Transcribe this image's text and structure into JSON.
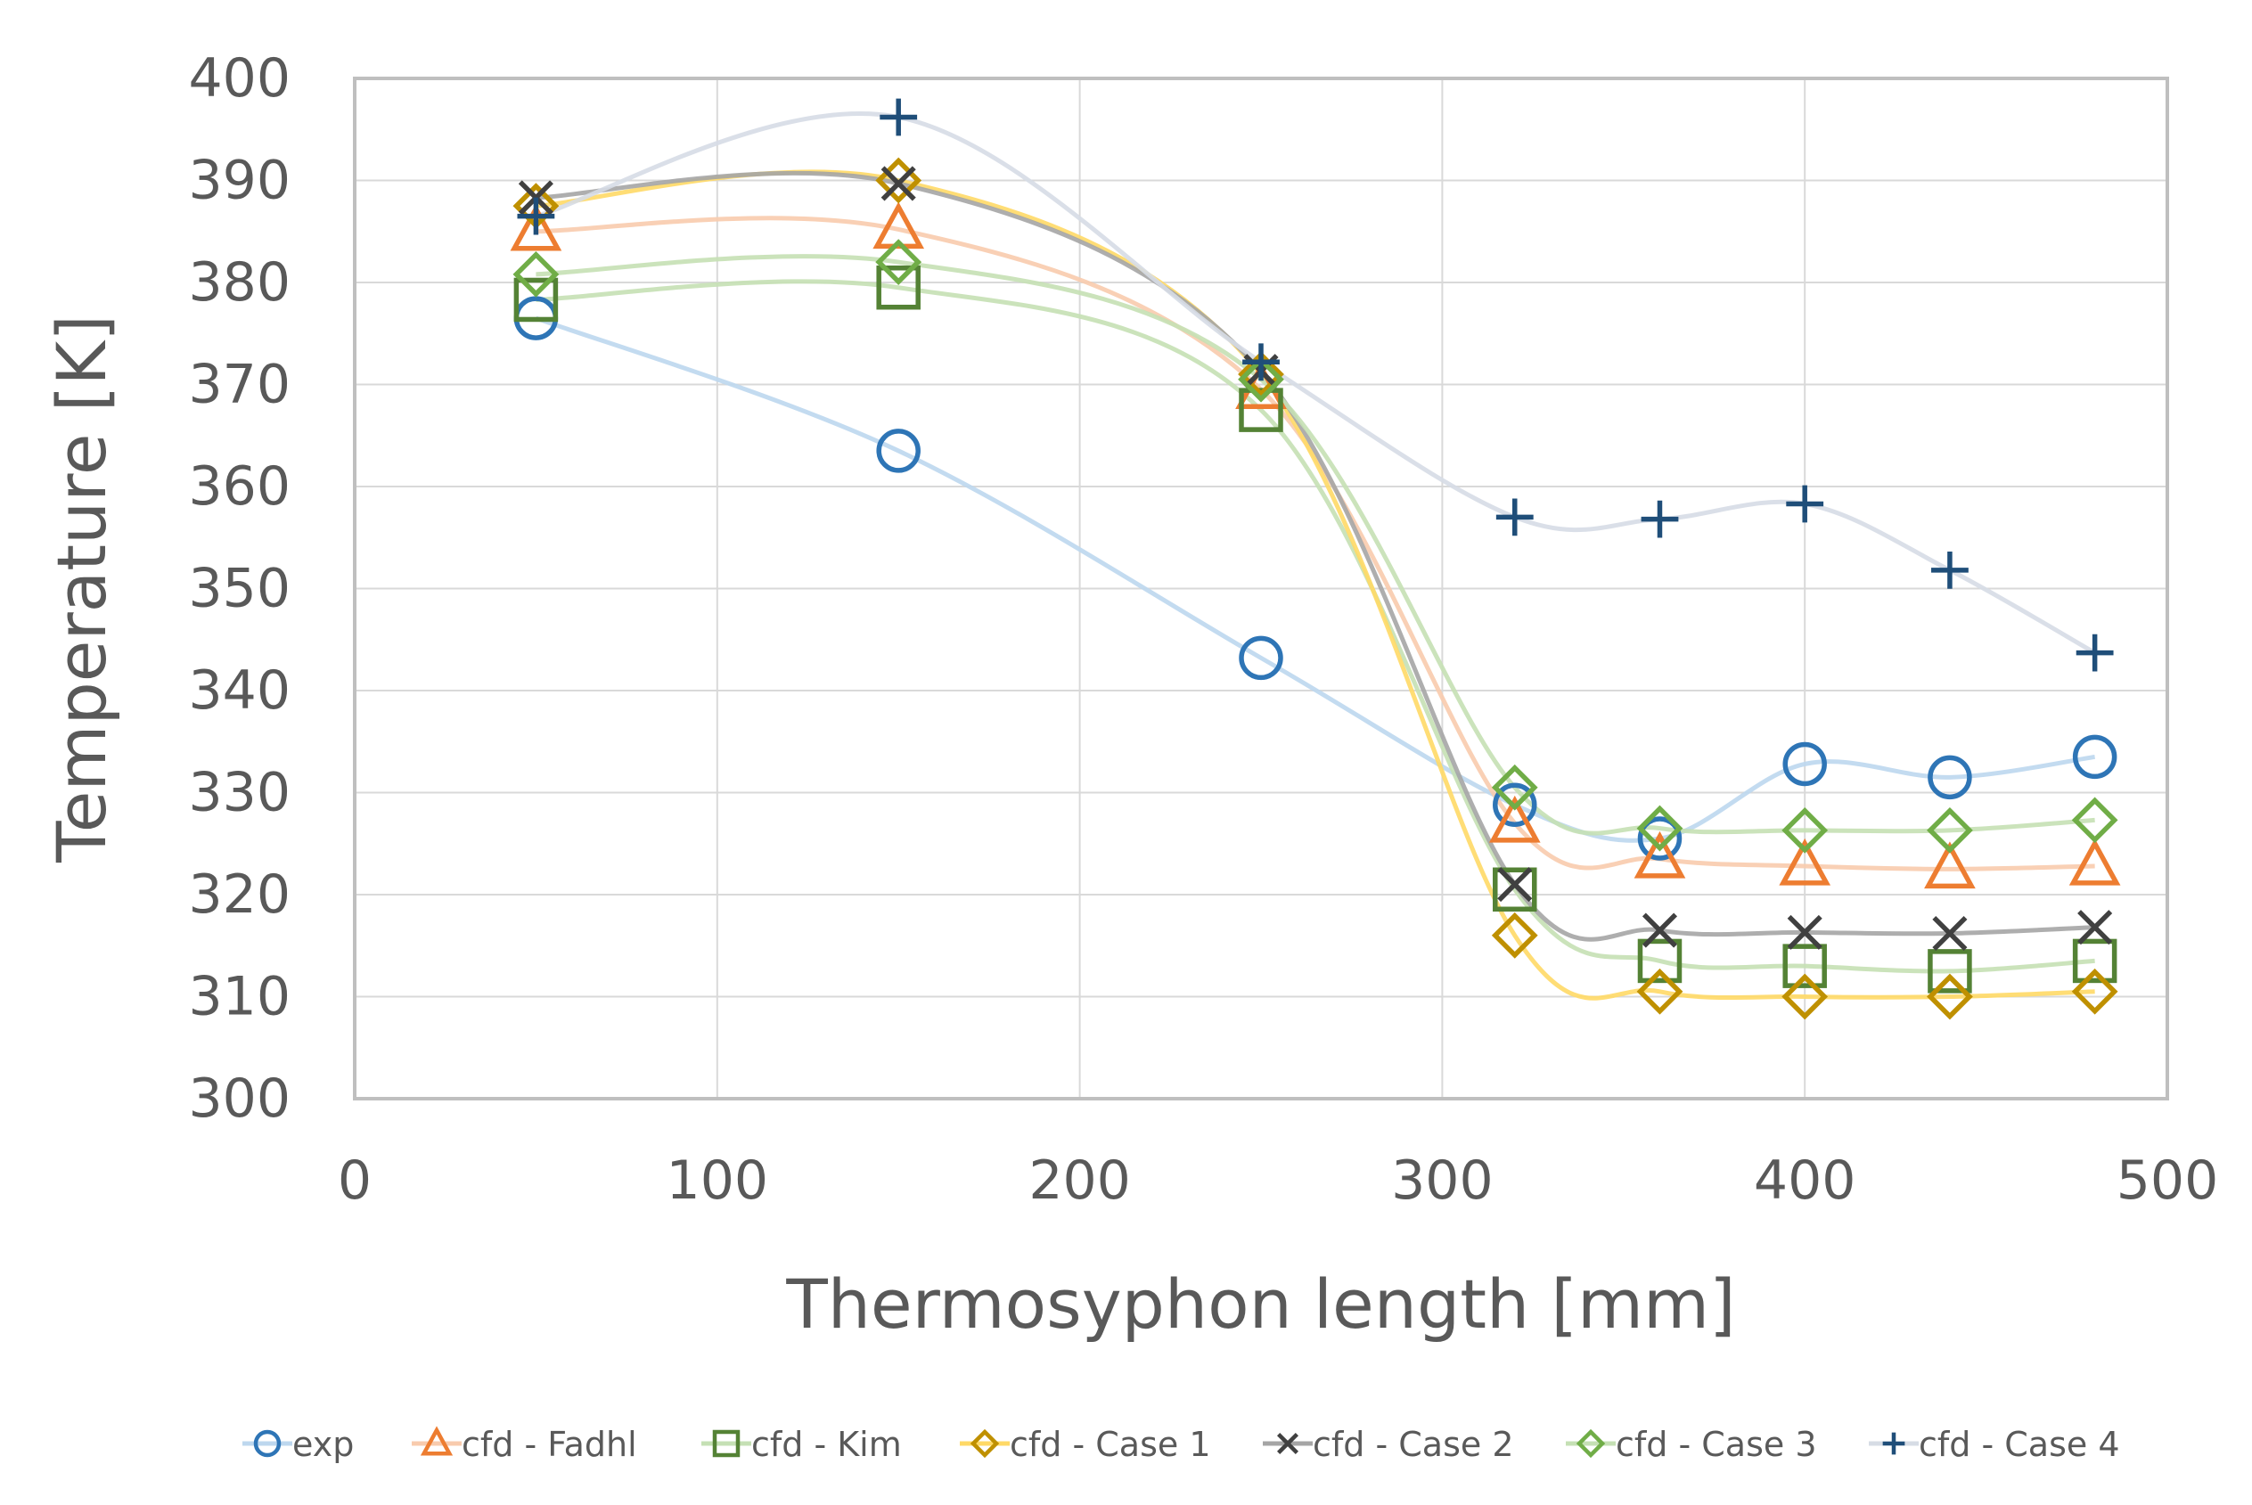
{
  "chart_data": {
    "type": "line",
    "title": "",
    "xlabel": "Thermosyphon length [mm]",
    "ylabel": "Temperature [K]",
    "xlim": [
      0,
      500
    ],
    "ylim": [
      300,
      400
    ],
    "xticks": [
      0,
      100,
      200,
      300,
      400,
      500
    ],
    "yticks": [
      300,
      310,
      320,
      330,
      340,
      350,
      360,
      370,
      380,
      390,
      400
    ],
    "grid": true,
    "legend_position": "bottom",
    "smoothed": true,
    "x": [
      50,
      150,
      250,
      320,
      360,
      400,
      440,
      480
    ],
    "series": [
      {
        "name": "exp",
        "marker": "circle",
        "marker_color": "#2E75B6",
        "line_color": "#BDD7EE",
        "values": [
          376.5,
          363.5,
          343.2,
          328.8,
          325.5,
          332.8,
          331.5,
          333.5
        ]
      },
      {
        "name": "cfd - Fadhl",
        "marker": "triangle",
        "marker_color": "#ED7D31",
        "line_color": "#F8CBAD",
        "values": [
          385.0,
          385.2,
          369.5,
          327.0,
          323.5,
          322.8,
          322.5,
          322.8
        ]
      },
      {
        "name": "cfd - Kim",
        "marker": "square",
        "marker_color": "#548235",
        "line_color": "#C5E0B4",
        "values": [
          378.3,
          379.5,
          367.5,
          320.5,
          313.5,
          313.0,
          312.5,
          313.5
        ]
      },
      {
        "name": "cfd - Case 1",
        "marker": "diamond",
        "marker_color": "#BF9000",
        "line_color": "#FFD966",
        "values": [
          387.5,
          390.0,
          371.0,
          316.0,
          310.5,
          310.0,
          310.0,
          310.5
        ]
      },
      {
        "name": "cfd - Case 2",
        "marker": "x",
        "marker_color": "#404040",
        "line_color": "#A5A5A5",
        "values": [
          388.3,
          389.7,
          371.3,
          321.0,
          316.5,
          316.3,
          316.2,
          316.8
        ]
      },
      {
        "name": "cfd - Case 3",
        "marker": "diamond",
        "marker_color": "#70AD47",
        "line_color": "#C5E0B4",
        "values": [
          380.8,
          382.0,
          370.5,
          330.5,
          326.5,
          326.3,
          326.3,
          327.3
        ]
      },
      {
        "name": "cfd - Case 4",
        "marker": "plus",
        "marker_color": "#1F4E79",
        "line_color": "#D6DCE5",
        "values": [
          386.5,
          396.2,
          372.2,
          357.0,
          356.8,
          358.3,
          351.8,
          343.7
        ]
      }
    ]
  }
}
